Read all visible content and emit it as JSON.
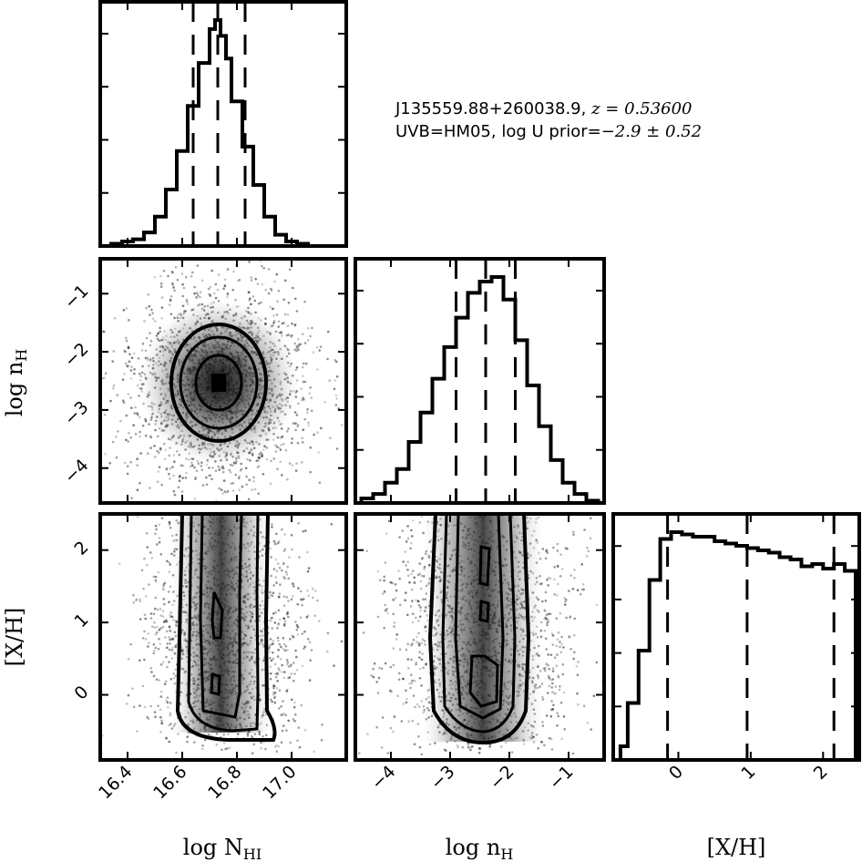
{
  "info": {
    "line1_text": "J135559.88+260038.9, ",
    "line1_math": "z = 0.53600",
    "line2_text": "UVB=HM05, log U prior=",
    "line2_math": "−2.9 ± 0.52"
  },
  "chart_data": {
    "type": "corner",
    "parameters": [
      {
        "key": "logN",
        "label_main": "log N",
        "label_sub": "HI",
        "range": [
          16.3,
          17.2
        ],
        "ticks": [
          16.4,
          16.6,
          16.8,
          17.0
        ],
        "tick_labels": [
          "16.4",
          "16.6",
          "16.8",
          "17.0"
        ]
      },
      {
        "key": "logn",
        "label_main": "log n",
        "label_sub": "H",
        "range": [
          -4.6,
          -0.4
        ],
        "ticks": [
          -4,
          -3,
          -2,
          -1
        ],
        "tick_labels": [
          "−4",
          "−3",
          "−2",
          "−1"
        ]
      },
      {
        "key": "XH",
        "label_main": "[X/H]",
        "label_sub": "",
        "range": [
          -0.9,
          2.5
        ],
        "ticks": [
          0,
          1,
          2
        ],
        "tick_labels": [
          "0",
          "1",
          "2"
        ]
      }
    ],
    "histograms": [
      {
        "param": "logN",
        "bin_edges": [
          16.34,
          16.38,
          16.42,
          16.46,
          16.5,
          16.54,
          16.58,
          16.62,
          16.66,
          16.7,
          16.72,
          16.74,
          16.76,
          16.78,
          16.82,
          16.86,
          16.9,
          16.94,
          16.98,
          17.02,
          17.06
        ],
        "counts": [
          0.01,
          0.02,
          0.03,
          0.06,
          0.13,
          0.25,
          0.42,
          0.62,
          0.81,
          0.96,
          1.0,
          0.93,
          0.83,
          0.64,
          0.44,
          0.27,
          0.13,
          0.05,
          0.02,
          0.01
        ],
        "quantiles": [
          16.64,
          16.73,
          16.83
        ]
      },
      {
        "param": "logn",
        "bin_edges": [
          -4.5,
          -4.3,
          -4.1,
          -3.9,
          -3.7,
          -3.5,
          -3.3,
          -3.1,
          -2.9,
          -2.7,
          -2.5,
          -2.3,
          -2.1,
          -1.9,
          -1.7,
          -1.5,
          -1.3,
          -1.1,
          -0.9,
          -0.7,
          -0.5
        ],
        "counts": [
          0.02,
          0.04,
          0.09,
          0.15,
          0.27,
          0.4,
          0.55,
          0.69,
          0.82,
          0.93,
          0.98,
          1.0,
          0.9,
          0.72,
          0.52,
          0.34,
          0.19,
          0.09,
          0.04,
          0.01
        ],
        "quantiles": [
          -2.9,
          -2.4,
          -1.9
        ]
      },
      {
        "param": "XH",
        "bin_edges": [
          -0.8,
          -0.7,
          -0.55,
          -0.4,
          -0.25,
          -0.1,
          0.05,
          0.2,
          0.35,
          0.5,
          0.65,
          0.8,
          0.95,
          1.1,
          1.25,
          1.4,
          1.55,
          1.7,
          1.85,
          2.0,
          2.15,
          2.3,
          2.45
        ],
        "counts": [
          0.06,
          0.25,
          0.48,
          0.79,
          0.97,
          1.0,
          0.99,
          0.98,
          0.98,
          0.96,
          0.95,
          0.94,
          0.93,
          0.92,
          0.91,
          0.89,
          0.88,
          0.85,
          0.86,
          0.84,
          0.86,
          0.83
        ],
        "quantiles": [
          -0.15,
          0.95,
          2.15
        ]
      }
    ]
  }
}
